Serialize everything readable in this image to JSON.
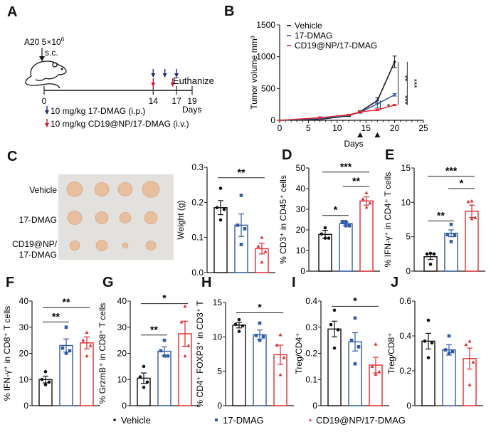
{
  "colors": {
    "vehicle": "#111111",
    "dmag": "#2f5aa8",
    "np": "#e02a2f",
    "dmag_arrow": "#1f2a7a",
    "np_arrow": "#d01c24",
    "axis": "#1a1a1a"
  },
  "panel_labels": [
    "A",
    "B",
    "C",
    "D",
    "E",
    "F",
    "G",
    "H",
    "I",
    "J"
  ],
  "panelA": {
    "injection_label": "A20 5×10",
    "injection_sup": "6",
    "route": "s.c.",
    "end_label": "Euthanize",
    "axis_unit": "Days",
    "ticks": [
      0,
      14,
      17,
      19
    ],
    "dmag_days": [
      14,
      15.5,
      17
    ],
    "np_days": [
      14,
      16.5
    ],
    "legend": [
      {
        "text": "10 mg/kg 17-DMAG (i.p.)",
        "color_key": "dmag_arrow"
      },
      {
        "text": "10 mg/kg CD19@NP/17-DMAG (i.v.)",
        "color_key": "np_arrow"
      }
    ],
    "icons": [
      "mouse-icon",
      "arrow-down-icon"
    ]
  },
  "panelC_photo": {
    "row_labels": [
      "Vehicle",
      "17-DMAG",
      "CD19@NP/",
      "17-DMAG"
    ]
  },
  "bottom_legend": [
    {
      "label": "Vehicle",
      "marker": "circle",
      "color_key": "vehicle"
    },
    {
      "label": "17-DMAG",
      "marker": "square",
      "color_key": "dmag"
    },
    {
      "label": "CD19@NP/17-DMAG",
      "marker": "triangle",
      "color_key": "np"
    }
  ],
  "chart_data": [
    {
      "id": "B",
      "type": "line",
      "title": "",
      "xlabel": "Days",
      "ylabel": "Tumor volume mm³",
      "xlim": [
        0,
        25
      ],
      "ylim": [
        0,
        1500
      ],
      "xticks": [
        0,
        5,
        10,
        15,
        20,
        25
      ],
      "yticks": [
        0,
        500,
        1000,
        1500
      ],
      "treatment_markers_days": [
        14,
        17
      ],
      "legend_position": "top-left",
      "series": [
        {
          "name": "Vehicle",
          "color_key": "vehicle",
          "x": [
            0,
            7,
            12,
            14,
            17,
            20
          ],
          "y": [
            0,
            15,
            70,
            135,
            310,
            920
          ],
          "err": [
            0,
            10,
            10,
            15,
            45,
            90
          ]
        },
        {
          "name": "17-DMAG",
          "color_key": "dmag",
          "x": [
            0,
            7,
            12,
            14,
            17,
            20
          ],
          "y": [
            0,
            25,
            80,
            125,
            260,
            400
          ],
          "err": [
            0,
            10,
            10,
            15,
            60,
            20
          ]
        },
        {
          "name": "CD19@NP/17-DMAG",
          "color_key": "np",
          "x": [
            0,
            7,
            12,
            14,
            17,
            20
          ],
          "y": [
            0,
            40,
            85,
            130,
            165,
            240
          ],
          "err": [
            0,
            15,
            10,
            15,
            15,
            10
          ]
        }
      ],
      "significance": [
        {
          "label": "*",
          "x": 17.5,
          "y1": 165,
          "y2": 310
        },
        {
          "label": "**",
          "x": 20.6,
          "y1": 400,
          "y2": 920
        },
        {
          "label": "***",
          "x": 20.6,
          "y1": 240,
          "y2": 400
        },
        {
          "label": "***",
          "x": 22.2,
          "y1": 240,
          "y2": 920
        }
      ]
    },
    {
      "id": "C",
      "type": "bar",
      "ylabel": "Weight (g)",
      "ylim": [
        0,
        0.3
      ],
      "yticks": [
        "0.0",
        "0.1",
        "0.2",
        "0.3"
      ],
      "categories": [
        "Vehicle",
        "17-DMAG",
        "CD19@NP/17-DMAG"
      ],
      "values": [
        0.185,
        0.135,
        0.068
      ],
      "sem": [
        0.02,
        0.032,
        0.015
      ],
      "points": [
        [
          0.24,
          0.185,
          0.18,
          0.15
        ],
        [
          0.22,
          0.135,
          0.125,
          0.08
        ],
        [
          0.1,
          0.075,
          0.06,
          0.03
        ]
      ],
      "significance": [
        {
          "label": "**",
          "from": 0,
          "to": 2,
          "level": 0.27
        }
      ]
    },
    {
      "id": "D",
      "type": "bar",
      "ylabel": "% CD3⁺ in CD45⁺ cells",
      "ylim": [
        0,
        50
      ],
      "yticks": [
        "0",
        "10",
        "20",
        "30",
        "40",
        "50"
      ],
      "categories": [
        "Vehicle",
        "17-DMAG",
        "CD19@NP/17-DMAG"
      ],
      "values": [
        17.8,
        23.0,
        34.0
      ],
      "sem": [
        2.0,
        0.8,
        2.0
      ],
      "points": [
        [
          21,
          18,
          16,
          16
        ],
        [
          24,
          24,
          22,
          22
        ],
        [
          38,
          35,
          33,
          31
        ]
      ],
      "significance": [
        {
          "label": "*",
          "from": 0,
          "to": 1,
          "level": 27
        },
        {
          "label": "**",
          "from": 1,
          "to": 2,
          "level": 41
        },
        {
          "label": "***",
          "from": 0,
          "to": 2,
          "level": 48
        }
      ]
    },
    {
      "id": "E",
      "type": "bar",
      "ylabel": "% IFN-γ⁺ in CD4⁺ T cells",
      "ylim": [
        0,
        15
      ],
      "yticks": [
        "0",
        "5",
        "10",
        "15"
      ],
      "categories": [
        "Vehicle",
        "17-DMAG",
        "CD19@NP/17-DMAG"
      ],
      "values": [
        2.1,
        5.5,
        8.7
      ],
      "sem": [
        0.4,
        0.5,
        0.9
      ],
      "points": [
        [
          2.6,
          2.5,
          2.5,
          1.0
        ],
        [
          6.8,
          5.3,
          5.2,
          4.3
        ],
        [
          10.2,
          10.1,
          7.8,
          7.6
        ]
      ],
      "significance": [
        {
          "label": "**",
          "from": 0,
          "to": 1,
          "level": 7.3
        },
        {
          "label": "*",
          "from": 1,
          "to": 2,
          "level": 12
        },
        {
          "label": "***",
          "from": 0,
          "to": 2,
          "level": 13.8
        }
      ]
    },
    {
      "id": "F",
      "type": "bar",
      "ylabel": "% IFN-γ⁺ in CD8⁺ T cells",
      "ylim": [
        0,
        40
      ],
      "yticks": [
        "0",
        "10",
        "20",
        "30",
        "40"
      ],
      "categories": [
        "Vehicle",
        "17-DMAG",
        "CD19@NP/17-DMAG"
      ],
      "values": [
        10.0,
        23.0,
        24.0
      ],
      "sem": [
        1.3,
        2.5,
        2.3
      ],
      "points": [
        [
          13,
          10,
          9,
          8
        ],
        [
          30,
          22,
          21,
          20
        ],
        [
          28,
          25,
          23,
          19
        ]
      ],
      "significance": [
        {
          "label": "**",
          "from": 0,
          "to": 1,
          "level": 32
        },
        {
          "label": "**",
          "from": 0,
          "to": 2,
          "level": 37.5
        }
      ]
    },
    {
      "id": "G",
      "type": "bar",
      "ylabel": "% GrzmB⁺ in CD8⁺ T cells",
      "ylim": [
        0,
        40
      ],
      "yticks": [
        "0",
        "10",
        "20",
        "30",
        "40"
      ],
      "categories": [
        "Vehicle",
        "17-DMAG",
        "CD19@NP/17-DMAG"
      ],
      "values": [
        10.5,
        20.8,
        27.5
      ],
      "sem": [
        2.0,
        1.7,
        4.8
      ],
      "points": [
        [
          15,
          11,
          9,
          7
        ],
        [
          25,
          21,
          19,
          19
        ],
        [
          38,
          32,
          23,
          19
        ]
      ],
      "significance": [
        {
          "label": "**",
          "from": 0,
          "to": 1,
          "level": 27
        },
        {
          "label": "*",
          "from": 0,
          "to": 2,
          "level": 39
        }
      ]
    },
    {
      "id": "H",
      "type": "bar",
      "ylabel": "% CD4⁺ FOXP3⁺ in CD3⁺ T",
      "ylim": [
        0,
        15
      ],
      "yticks": [
        "0",
        "5",
        "10",
        "15"
      ],
      "categories": [
        "Vehicle",
        "17-DMAG",
        "CD19@NP/17-DMAG"
      ],
      "values": [
        11.7,
        10.3,
        7.4
      ],
      "sem": [
        0.4,
        0.7,
        1.4
      ],
      "points": [
        [
          12.5,
          11.8,
          11.6,
          10.8
        ],
        [
          12.0,
          10.2,
          10.0,
          9.5
        ],
        [
          10.3,
          8.8,
          7.0,
          4.5
        ]
      ],
      "significance": [
        {
          "label": "*",
          "from": 0,
          "to": 2,
          "level": 13.5
        }
      ]
    },
    {
      "id": "I",
      "type": "bar",
      "ylabel": "Treg/CD4⁺",
      "ylim": [
        0,
        0.4
      ],
      "yticks": [
        "0",
        "0.1",
        "0.2",
        "0.3",
        "0.4"
      ],
      "categories": [
        "Vehicle",
        "17-DMAG",
        "CD19@NP/17-DMAG"
      ],
      "values": [
        0.293,
        0.244,
        0.155
      ],
      "sem": [
        0.03,
        0.035,
        0.03
      ],
      "points": [
        [
          0.365,
          0.31,
          0.29,
          0.22
        ],
        [
          0.335,
          0.25,
          0.225,
          0.16
        ],
        [
          0.235,
          0.15,
          0.13,
          0.12
        ]
      ],
      "significance": [
        {
          "label": "*",
          "from": 0,
          "to": 2,
          "level": 0.38
        }
      ]
    },
    {
      "id": "J",
      "type": "bar",
      "ylabel": "Treg/CD8⁺",
      "ylim": [
        0,
        0.6
      ],
      "yticks": [
        "0",
        "0.2",
        "0.4",
        "0.6"
      ],
      "categories": [
        "Vehicle",
        "17-DMAG",
        "CD19@NP/17-DMAG"
      ],
      "values": [
        0.37,
        0.32,
        0.27
      ],
      "sem": [
        0.045,
        0.03,
        0.06
      ],
      "points": [
        [
          0.49,
          0.37,
          0.36,
          0.275
        ],
        [
          0.4,
          0.32,
          0.31,
          0.3
        ],
        [
          0.37,
          0.35,
          0.25,
          0.12
        ]
      ],
      "significance": []
    }
  ]
}
